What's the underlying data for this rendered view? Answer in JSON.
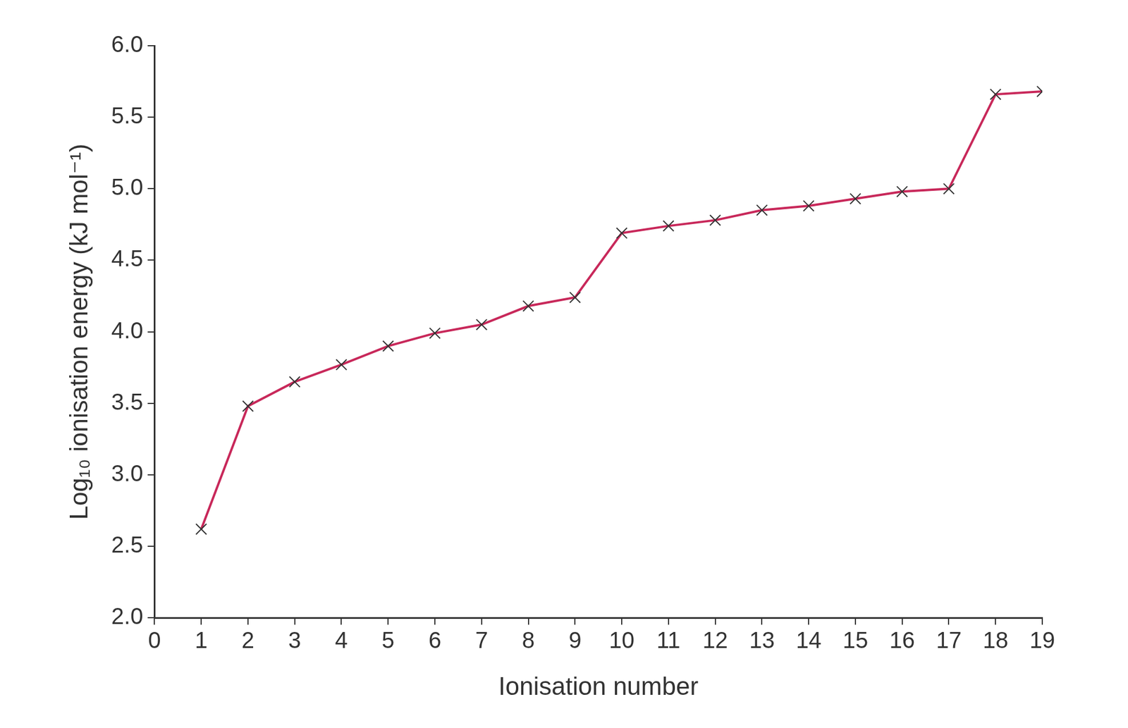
{
  "chart_data": {
    "type": "line",
    "x_label": "Ionisation number",
    "y_label": "Log₁₀ ionisation energy (kJ mol⁻¹)",
    "x": [
      1,
      2,
      3,
      4,
      5,
      6,
      7,
      8,
      9,
      10,
      11,
      12,
      13,
      14,
      15,
      16,
      17,
      18,
      19
    ],
    "values": [
      2.62,
      3.48,
      3.65,
      3.77,
      3.9,
      3.99,
      4.05,
      4.18,
      4.24,
      4.69,
      4.74,
      4.78,
      4.85,
      4.88,
      4.93,
      4.98,
      5.0,
      5.66,
      5.68
    ],
    "color": "#c8285a",
    "marker": "x",
    "line_style": "solid",
    "grid": false,
    "xlim": [
      0,
      19
    ],
    "xticks": [
      0,
      1,
      2,
      3,
      4,
      5,
      6,
      7,
      8,
      9,
      10,
      11,
      12,
      13,
      14,
      15,
      16,
      17,
      18,
      19
    ],
    "ylim": [
      2.0,
      6.0
    ],
    "yticks": [
      {
        "value": 2.0,
        "label": "2.0"
      },
      {
        "value": 2.5,
        "label": "2.5"
      },
      {
        "value": 3.0,
        "label": "3.0"
      },
      {
        "value": 3.5,
        "label": "3.5"
      },
      {
        "value": 4.0,
        "label": "4.0"
      },
      {
        "value": 4.5,
        "label": "4.5"
      },
      {
        "value": 5.0,
        "label": "5.0"
      },
      {
        "value": 5.5,
        "label": "5.5"
      },
      {
        "value": 6.0,
        "label": "6.0"
      }
    ]
  }
}
